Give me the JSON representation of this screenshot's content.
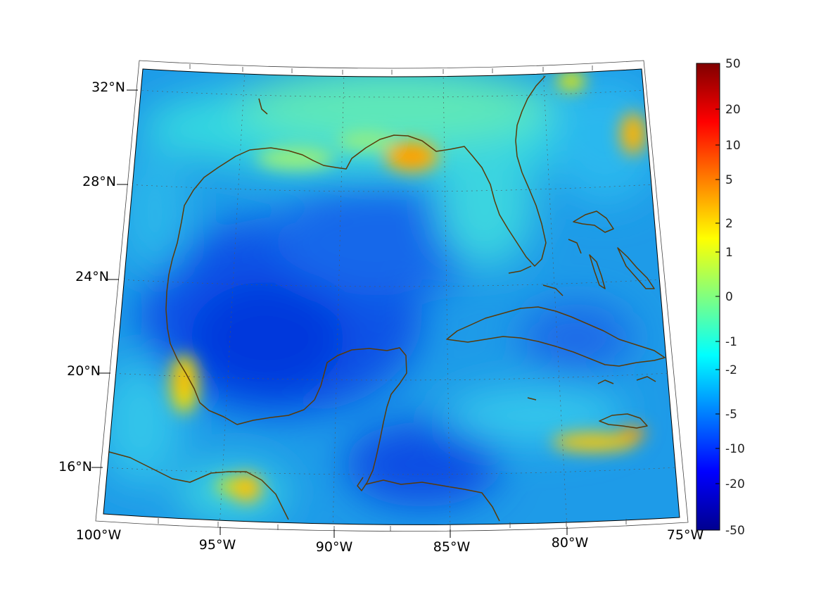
{
  "map": {
    "lon_labels": [
      "100°W",
      "95°W",
      "90°W",
      "85°W",
      "80°W",
      "75°W"
    ],
    "lat_labels": [
      "32°N",
      "28°N",
      "24°N",
      "20°N",
      "16°N"
    ],
    "coastline_color": "#5a3a08",
    "colormap": "jet"
  },
  "colorbar": {
    "tick_labels": [
      "50",
      "20",
      "10",
      "5",
      "2",
      "1",
      "0",
      "-1",
      "-2",
      "-5",
      "-10",
      "-20",
      "-50"
    ]
  }
}
